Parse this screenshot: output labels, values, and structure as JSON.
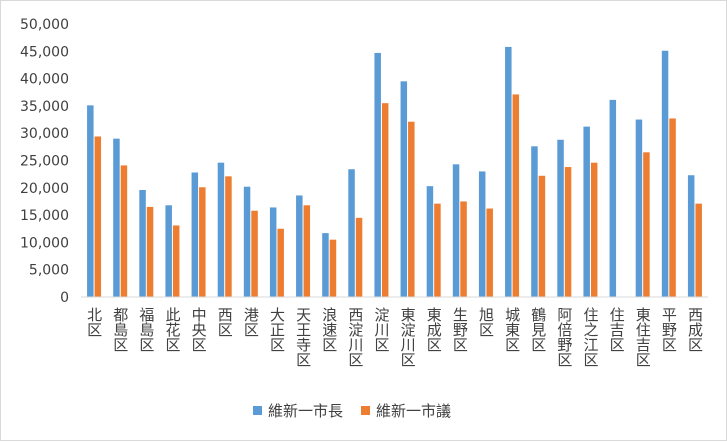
{
  "chart_data": {
    "type": "bar",
    "categories": [
      "北区",
      "都島区",
      "福島区",
      "此花区",
      "中央区",
      "西区",
      "港区",
      "大正区",
      "天王寺区",
      "浪速区",
      "西淀川区",
      "淀川区",
      "東淀川区",
      "東成区",
      "生野区",
      "旭区",
      "城東区",
      "鶴見区",
      "阿倍野区",
      "住之江区",
      "住吉区",
      "東住吉区",
      "平野区",
      "西成区"
    ],
    "series": [
      {
        "name": "維新一市長",
        "color": "#5b9bd5",
        "values": [
          35100,
          29000,
          19600,
          16800,
          22800,
          24600,
          20200,
          16400,
          18600,
          11700,
          23400,
          44700,
          39500,
          20300,
          24300,
          23000,
          45800,
          27600,
          28800,
          31200,
          36100,
          32500,
          45100,
          22300
        ]
      },
      {
        "name": "維新一市議",
        "color": "#ed7d31",
        "values": [
          29400,
          24100,
          16500,
          13100,
          20100,
          22100,
          15800,
          12500,
          16800,
          10500,
          14500,
          35500,
          32100,
          17100,
          17500,
          16200,
          37100,
          22200,
          23800,
          24600,
          null,
          26500,
          32700,
          17100
        ]
      }
    ],
    "ylim": [
      0,
      50000
    ],
    "yticks": [
      0,
      5000,
      10000,
      15000,
      20000,
      25000,
      30000,
      35000,
      40000,
      45000,
      50000
    ],
    "ytick_labels": [
      "0",
      "5,000",
      "10,000",
      "15,000",
      "20,000",
      "25,000",
      "30,000",
      "35,000",
      "40,000",
      "45,000",
      "50,000"
    ],
    "grid": false,
    "legend_position": "bottom"
  }
}
